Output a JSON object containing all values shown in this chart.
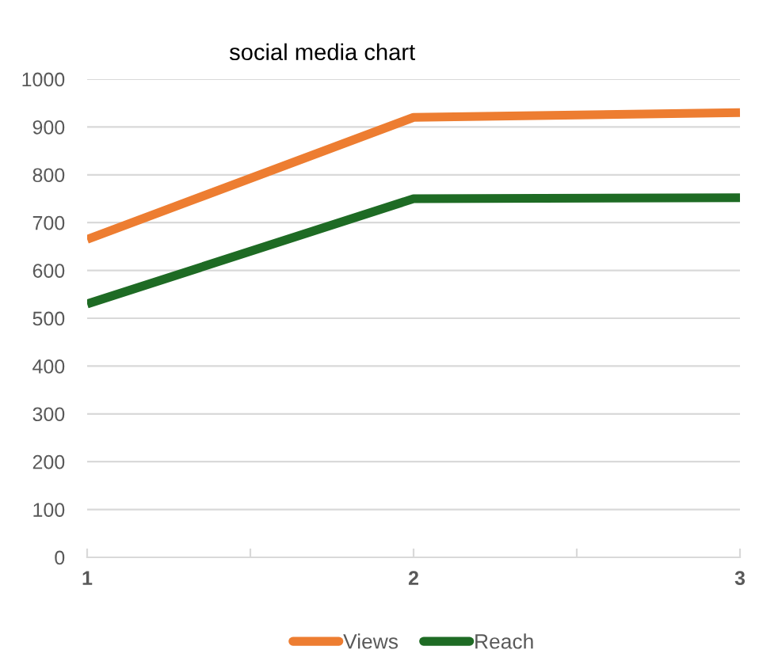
{
  "chart_data": {
    "type": "line",
    "title": "social media chart",
    "x": [
      1,
      2,
      3
    ],
    "series": [
      {
        "name": "Views",
        "color": "#ed7d31",
        "values": [
          665,
          920,
          930
        ]
      },
      {
        "name": "Reach",
        "color": "#1e6b24",
        "values": [
          530,
          750,
          752
        ]
      }
    ],
    "xlim": [
      1,
      3
    ],
    "xticks": [
      1,
      {
        "value": 1.5,
        "label": null
      },
      2,
      {
        "value": 2.5,
        "label": null
      },
      3
    ],
    "ylim": [
      0,
      1000
    ],
    "yticks": [
      0,
      100,
      200,
      300,
      400,
      500,
      600,
      700,
      800,
      900,
      1000
    ],
    "grid": "y",
    "legend": "bottom",
    "marker": "none",
    "line_style": "solid"
  }
}
